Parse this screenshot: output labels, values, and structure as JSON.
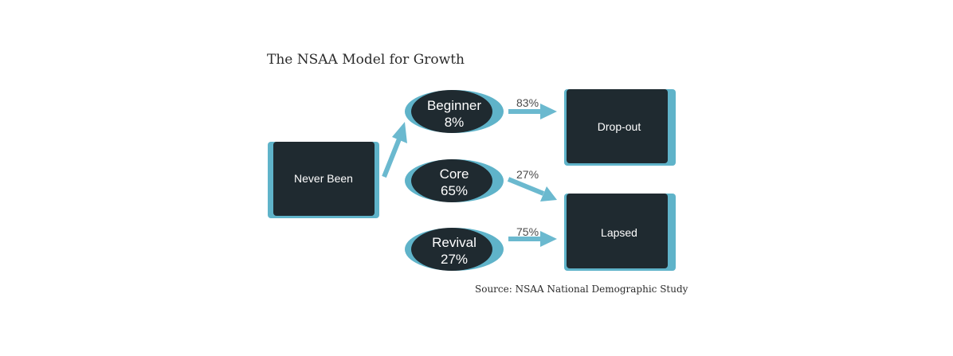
{
  "title": "The NSAA Model for Growth",
  "source": "Source: NSAA National Demographic Study",
  "colors": {
    "node": "#1f2a30",
    "accent": "#5fb3c9",
    "arrow": "#6bb9cf"
  },
  "nodes": {
    "never_been": "Never Been",
    "beginner": {
      "label": "Beginner",
      "value": "8%"
    },
    "core": {
      "label": "Core",
      "value": "65%"
    },
    "revival": {
      "label": "Revival",
      "value": "27%"
    },
    "drop_out": "Drop-out",
    "lapsed": "Lapsed"
  },
  "flows": {
    "beginner_to_dropout": "83%",
    "core_to_lapsed": "27%",
    "revival_to_lapsed": "75%"
  }
}
